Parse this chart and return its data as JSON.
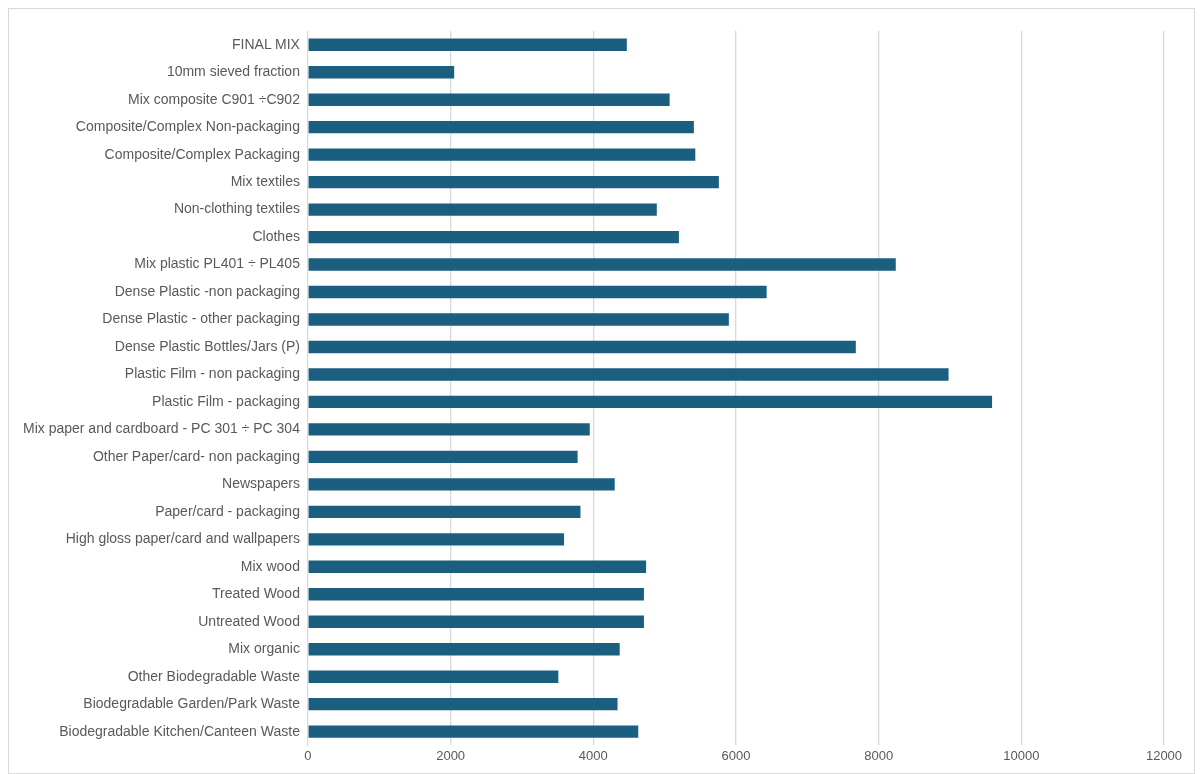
{
  "chart_data": {
    "type": "bar",
    "orientation": "horizontal",
    "categories": [
      "FINAL MIX",
      "10mm sieved fraction",
      "Mix composite C901 ÷C902",
      "Composite/Complex Non-packaging",
      "Composite/Complex Packaging",
      "Mix textiles",
      "Non-clothing textiles",
      "Clothes",
      "Mix plastic PL401 ÷ PL405",
      "Dense Plastic -non packaging",
      "Dense Plastic - other packaging",
      "Dense Plastic Bottles/Jars (P)",
      "Plastic Film - non packaging",
      "Plastic Film - packaging",
      "Mix paper and cardboard - PC 301 ÷ PC 304",
      "Other Paper/card- non packaging",
      "Newspapers",
      "Paper/card - packaging",
      "High gloss paper/card and wallpapers",
      "Mix wood",
      "Treated Wood",
      "Untreated Wood",
      "Mix organic",
      "Other Biodegradable Waste",
      "Biodegradable Garden/Park Waste",
      "Biodegradable Kitchen/Canteen Waste"
    ],
    "values": [
      4470,
      2050,
      5070,
      5410,
      5430,
      5760,
      4890,
      5200,
      8240,
      6430,
      5900,
      7680,
      8980,
      9590,
      3950,
      3780,
      4300,
      3820,
      3590,
      4740,
      4710,
      4710,
      4370,
      3510,
      4340,
      4630
    ],
    "color": "#1a5e80",
    "xlim": [
      0,
      12000
    ],
    "xticks": [
      0,
      2000,
      4000,
      6000,
      8000,
      10000,
      12000
    ],
    "grid": "x",
    "legend": false
  }
}
